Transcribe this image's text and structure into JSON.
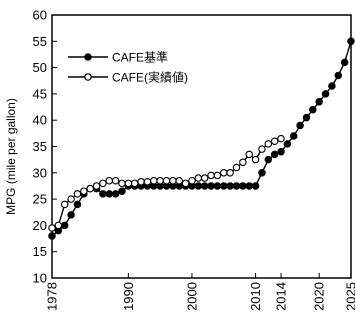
{
  "chart_data": {
    "type": "line",
    "ylabel": "MPG (mile per gallon)",
    "xlabel": "",
    "xlim": [
      1978,
      2025
    ],
    "ylim": [
      10,
      60
    ],
    "xticks": [
      1978,
      1990,
      2000,
      2010,
      2014,
      2020,
      2025
    ],
    "yticks": [
      10,
      15,
      20,
      25,
      30,
      35,
      40,
      45,
      50,
      55,
      60
    ],
    "grid": false,
    "legend": "top-left",
    "series": [
      {
        "name": "CAFE基準",
        "marker": "filled-circle",
        "color": "#000000",
        "x": [
          1978,
          1979,
          1980,
          1981,
          1982,
          1983,
          1984,
          1985,
          1986,
          1987,
          1988,
          1989,
          1990,
          1991,
          1992,
          1993,
          1994,
          1995,
          1996,
          1997,
          1998,
          1999,
          2000,
          2001,
          2002,
          2003,
          2004,
          2005,
          2006,
          2007,
          2008,
          2009,
          2010,
          2011,
          2012,
          2013,
          2014,
          2015,
          2016,
          2017,
          2018,
          2019,
          2020,
          2021,
          2022,
          2023,
          2024,
          2025
        ],
        "y": [
          18,
          19,
          20,
          22,
          24,
          26,
          27,
          27,
          26,
          26,
          26,
          26.5,
          27.5,
          27.5,
          27.5,
          27.5,
          27.5,
          27.5,
          27.5,
          27.5,
          27.5,
          27.5,
          27.5,
          27.5,
          27.5,
          27.5,
          27.5,
          27.5,
          27.5,
          27.5,
          27.5,
          27.5,
          27.5,
          30,
          32.5,
          33.5,
          34,
          35.5,
          37,
          39,
          40.5,
          42,
          43.5,
          45,
          46.5,
          48.5,
          51,
          55
        ]
      },
      {
        "name": "CAFE(実績値)",
        "marker": "open-circle",
        "color": "#000000",
        "x": [
          1978,
          1979,
          1980,
          1981,
          1982,
          1983,
          1984,
          1985,
          1986,
          1987,
          1988,
          1989,
          1990,
          1991,
          1992,
          1993,
          1994,
          1995,
          1996,
          1997,
          1998,
          1999,
          2000,
          2001,
          2002,
          2003,
          2004,
          2005,
          2006,
          2007,
          2008,
          2009,
          2010,
          2011,
          2012,
          2013,
          2014
        ],
        "y": [
          19.5,
          20,
          24,
          25,
          26,
          26.5,
          27,
          27.5,
          28,
          28.5,
          28.5,
          28,
          28,
          28,
          28.3,
          28.3,
          28.5,
          28.5,
          28.5,
          28.5,
          28.5,
          28,
          28.5,
          29,
          29,
          29.5,
          29.5,
          30,
          30,
          31,
          32,
          33.5,
          32.5,
          34.5,
          35.5,
          36,
          36.5
        ]
      }
    ]
  }
}
